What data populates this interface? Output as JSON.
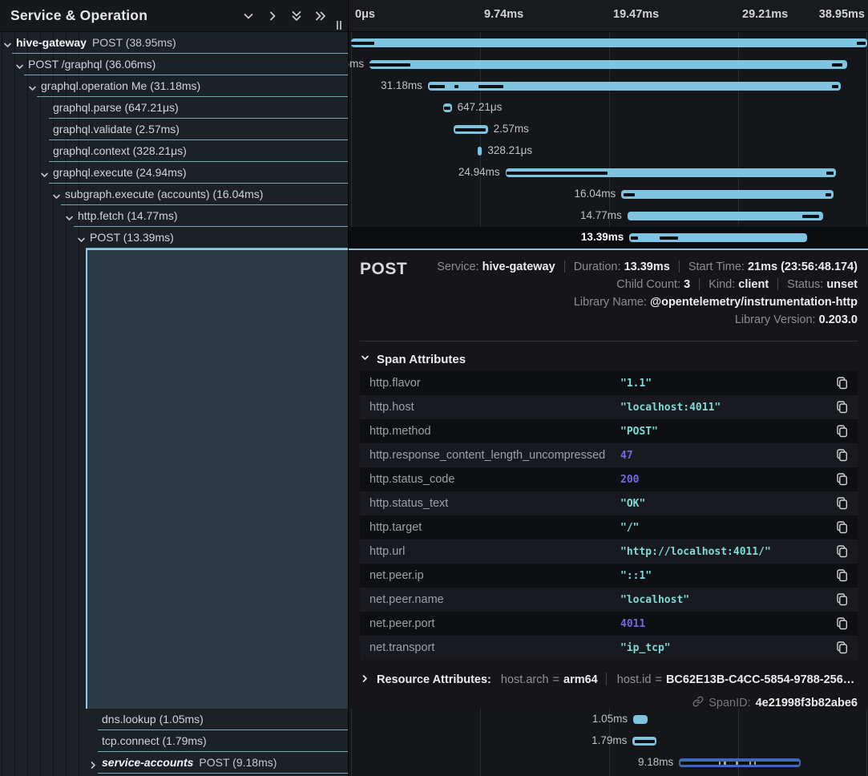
{
  "left_panel": {
    "title": "Service & Operation"
  },
  "toolbar_icons": [
    {
      "name": "collapse-one-icon"
    },
    {
      "name": "expand-one-icon"
    },
    {
      "name": "collapse-all-icon"
    },
    {
      "name": "expand-all-icon"
    }
  ],
  "timeline": {
    "total_ms": 38.95,
    "ticks": [
      {
        "label": "0μs",
        "pct": 0,
        "align": "left"
      },
      {
        "label": "9.74ms",
        "pct": 25,
        "align": "left"
      },
      {
        "label": "19.47ms",
        "pct": 50,
        "align": "left"
      },
      {
        "label": "29.21ms",
        "pct": 75,
        "align": "left"
      },
      {
        "label": "38.95ms",
        "pct": 100,
        "align": "right"
      }
    ]
  },
  "colors": {
    "bar_light": "#7ec3e0",
    "bar_blue": "#3e6ab1",
    "selected_block": "#2d3a43",
    "accent_border": "#7fc4e0",
    "string_value": "#7cdcd6",
    "number_value": "#7268e6"
  },
  "spans": [
    {
      "name": "hive-gateway",
      "name_italic": false,
      "suffix": "POST (38.95ms)",
      "depth": 0,
      "chevron": "down",
      "start_ms": 0,
      "dur_ms": 38.95,
      "dur_label": "38.95ms",
      "label_side": "left",
      "bar": "light",
      "selected": false,
      "segments": [
        {
          "s": 0,
          "w": 1.75
        },
        {
          "s": 38.15,
          "w": 0.7
        }
      ]
    },
    {
      "label": "POST /graphql (36.06ms)",
      "depth": 1,
      "chevron": "down",
      "start_ms": 1.4,
      "dur_ms": 36.06,
      "dur_label": "36.06ms",
      "label_side": "left",
      "bar": "light",
      "selected": false,
      "segments": [
        {
          "s": 0,
          "w": 3.1
        },
        {
          "s": 34.9,
          "w": 0.8
        }
      ]
    },
    {
      "label": "graphql.operation Me (31.18ms)",
      "depth": 2,
      "chevron": "down",
      "start_ms": 5.8,
      "dur_ms": 31.18,
      "dur_label": "31.18ms",
      "label_side": "left",
      "bar": "light",
      "selected": false,
      "segments": [
        {
          "s": 0.15,
          "w": 1.1
        },
        {
          "s": 2.0,
          "w": 0.3
        },
        {
          "s": 3.8,
          "w": 1.9
        },
        {
          "s": 30.5,
          "w": 0.45
        }
      ]
    },
    {
      "label": "graphql.parse (647.21μs)",
      "depth": 3,
      "chevron": "none",
      "start_ms": 6.95,
      "dur_ms": 0.64721,
      "dur_label": "647.21μs",
      "label_side": "right",
      "bar": "light",
      "selected": false,
      "segments": [
        {
          "s": 0.06,
          "w": 0.5
        }
      ]
    },
    {
      "label": "graphql.validate (2.57ms)",
      "depth": 3,
      "chevron": "none",
      "start_ms": 7.75,
      "dur_ms": 2.57,
      "dur_label": "2.57ms",
      "label_side": "right",
      "bar": "light",
      "selected": false,
      "segments": [
        {
          "s": 0.12,
          "w": 2.3
        }
      ]
    },
    {
      "label": "graphql.context (328.21μs)",
      "depth": 3,
      "chevron": "none",
      "start_ms": 9.55,
      "dur_ms": 0.32821,
      "dur_label": "328.21μs",
      "label_side": "right",
      "bar": "light",
      "selected": false,
      "segments": []
    },
    {
      "label": "graphql.execute (24.94ms)",
      "depth": 3,
      "chevron": "down",
      "start_ms": 11.65,
      "dur_ms": 24.94,
      "dur_label": "24.94ms",
      "label_side": "left",
      "bar": "light",
      "selected": false,
      "segments": [
        {
          "s": 0.1,
          "w": 7.6
        },
        {
          "s": 24.2,
          "w": 0.55
        }
      ]
    },
    {
      "label": "subgraph.execute (accounts) (16.04ms)",
      "depth": 4,
      "chevron": "down",
      "start_ms": 20.4,
      "dur_ms": 16.04,
      "dur_label": "16.04ms",
      "label_side": "left",
      "bar": "light",
      "selected": false,
      "segments": [
        {
          "s": 0.15,
          "w": 0.85
        },
        {
          "s": 15.4,
          "w": 0.4
        }
      ]
    },
    {
      "label": "http.fetch (14.77ms)",
      "depth": 5,
      "chevron": "down",
      "start_ms": 20.85,
      "dur_ms": 14.77,
      "dur_label": "14.77ms",
      "label_side": "left",
      "bar": "light",
      "selected": false,
      "segments": [
        {
          "s": 13.2,
          "w": 1.3
        }
      ]
    },
    {
      "label": "POST (13.39ms)",
      "depth": 6,
      "chevron": "down",
      "start_ms": 21.0,
      "dur_ms": 13.39,
      "dur_label": "13.39ms",
      "label_side": "left",
      "bar": "light",
      "selected": true,
      "segments": [
        {
          "s": 0.1,
          "w": 0.55
        },
        {
          "s": 2.3,
          "w": 1.4
        }
      ]
    },
    {
      "label": "dns.lookup (1.05ms)",
      "depth": 7,
      "chevron": "none",
      "start_ms": 21.3,
      "dur_ms": 1.05,
      "dur_label": "1.05ms",
      "label_side": "left",
      "bar": "light",
      "selected": false,
      "segments": []
    },
    {
      "label": "tcp.connect (1.79ms)",
      "depth": 7,
      "chevron": "none",
      "start_ms": 21.25,
      "dur_ms": 1.79,
      "dur_label": "1.79ms",
      "label_side": "left",
      "bar": "light",
      "selected": false,
      "segments": [
        {
          "s": 0.15,
          "w": 1.5
        }
      ]
    },
    {
      "name": "service-accounts",
      "name_italic": true,
      "suffix": "POST (9.18ms)",
      "depth": 7,
      "chevron": "right",
      "start_ms": 24.75,
      "dur_ms": 9.18,
      "dur_label": "9.18ms",
      "label_side": "left",
      "bar": "blue",
      "selected": false,
      "segments": [
        {
          "s": 0.12,
          "w": 8.95
        },
        {
          "s": 3.0,
          "w": 0.16,
          "c": "light"
        },
        {
          "s": 3.4,
          "w": 0.16,
          "c": "light"
        },
        {
          "s": 4.3,
          "w": 0.16,
          "c": "light"
        },
        {
          "s": 5.3,
          "w": 0.16,
          "c": "light"
        },
        {
          "s": 5.65,
          "w": 0.16,
          "c": "light"
        }
      ]
    }
  ],
  "detail": {
    "title": "POST",
    "meta_lines": [
      [
        {
          "label": "Service:",
          "value": "hive-gateway"
        },
        {
          "label": "Duration:",
          "value": "13.39ms"
        },
        {
          "label": "Start Time:",
          "value": "21ms (23:56:48.174)"
        }
      ],
      [
        {
          "label": "Child Count:",
          "value": "3"
        },
        {
          "label": "Kind:",
          "value": "client"
        },
        {
          "label": "Status:",
          "value": "unset"
        }
      ],
      [
        {
          "label": "Library Name:",
          "value": "@opentelemetry/instrumentation-http"
        }
      ],
      [
        {
          "label": "Library Version:",
          "value": "0.203.0"
        }
      ]
    ],
    "span_attributes": {
      "header": "Span Attributes",
      "rows": [
        {
          "key": "http.flavor",
          "value": "\"1.1\"",
          "type": "string"
        },
        {
          "key": "http.host",
          "value": "\"localhost:4011\"",
          "type": "string"
        },
        {
          "key": "http.method",
          "value": "\"POST\"",
          "type": "string"
        },
        {
          "key": "http.response_content_length_uncompressed",
          "value": "47",
          "type": "number"
        },
        {
          "key": "http.status_code",
          "value": "200",
          "type": "number"
        },
        {
          "key": "http.status_text",
          "value": "\"OK\"",
          "type": "string"
        },
        {
          "key": "http.target",
          "value": "\"/\"",
          "type": "string"
        },
        {
          "key": "http.url",
          "value": "\"http://localhost:4011/\"",
          "type": "string"
        },
        {
          "key": "net.peer.ip",
          "value": "\"::1\"",
          "type": "string"
        },
        {
          "key": "net.peer.name",
          "value": "\"localhost\"",
          "type": "string"
        },
        {
          "key": "net.peer.port",
          "value": "4011",
          "type": "number"
        },
        {
          "key": "net.transport",
          "value": "\"ip_tcp\"",
          "type": "string"
        }
      ]
    },
    "resource_attributes": {
      "header": "Resource Attributes:",
      "pairs": [
        {
          "key": "host.arch",
          "value": "arm64"
        },
        {
          "key": "host.id",
          "value": "BC62E13B-C4CC-5854-9788-256…"
        }
      ]
    },
    "span_id": {
      "label": "SpanID:",
      "value": "4e21998f3b82abe6"
    }
  }
}
